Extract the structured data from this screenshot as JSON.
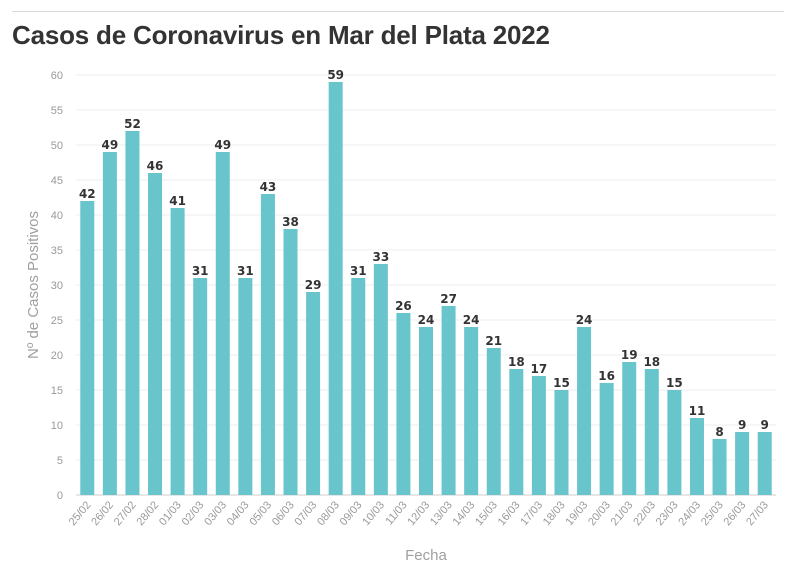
{
  "chart_data": {
    "type": "bar",
    "title": "Casos de Coronavirus en Mar del Plata 2022",
    "xlabel": "Fecha",
    "ylabel": "Nº de Casos Positivos",
    "ylim": [
      0,
      60
    ],
    "yticks": [
      0,
      5,
      10,
      15,
      20,
      25,
      30,
      35,
      40,
      45,
      50,
      55,
      60
    ],
    "grid": true,
    "bar_color": "#67c5cb",
    "categories": [
      "25/02",
      "26/02",
      "27/02",
      "28/02",
      "01/03",
      "02/03",
      "03/03",
      "04/03",
      "05/03",
      "06/03",
      "07/03",
      "08/03",
      "09/03",
      "10/03",
      "11/03",
      "12/03",
      "13/03",
      "14/03",
      "15/03",
      "16/03",
      "17/03",
      "18/03",
      "19/03",
      "20/03",
      "21/03",
      "22/03",
      "23/03",
      "24/03",
      "25/03",
      "26/03",
      "27/03"
    ],
    "values": [
      42,
      49,
      52,
      46,
      41,
      31,
      49,
      31,
      43,
      38,
      29,
      59,
      31,
      33,
      26,
      24,
      27,
      24,
      21,
      18,
      17,
      15,
      24,
      16,
      19,
      18,
      15,
      11,
      8,
      9,
      9
    ]
  }
}
